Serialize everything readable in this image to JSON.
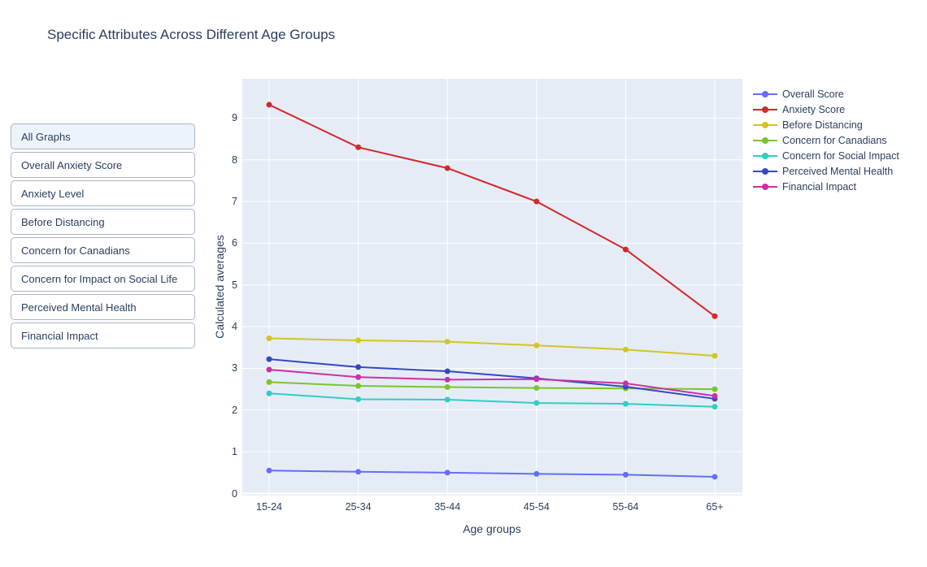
{
  "page": {
    "title": "Specific Attributes Across Different Age Groups"
  },
  "sidebar": {
    "buttons": [
      {
        "label": "All Graphs",
        "selected": true
      },
      {
        "label": "Overall Anxiety Score",
        "selected": false
      },
      {
        "label": "Anxiety Level",
        "selected": false
      },
      {
        "label": "Before Distancing",
        "selected": false
      },
      {
        "label": "Concern for Canadians",
        "selected": false
      },
      {
        "label": "Concern for Impact on Social Life",
        "selected": false
      },
      {
        "label": "Perceived Mental Health",
        "selected": false
      },
      {
        "label": "Financial Impact",
        "selected": false
      }
    ]
  },
  "chart_data": {
    "type": "line",
    "title": "Specific Attributes Across Different Age Groups",
    "categories": [
      "15-24",
      "25-34",
      "35-44",
      "45-54",
      "55-64",
      "65+"
    ],
    "series": [
      {
        "name": "Overall Score",
        "color": "#636efa",
        "values": [
          0.55,
          0.52,
          0.5,
          0.47,
          0.45,
          0.4
        ]
      },
      {
        "name": "Anxiety Score",
        "color": "#d62728",
        "values": [
          9.32,
          8.3,
          7.8,
          7.0,
          5.85,
          4.25
        ]
      },
      {
        "name": "Before Distancing",
        "color": "#d2c61f",
        "values": [
          3.72,
          3.67,
          3.64,
          3.55,
          3.45,
          3.3
        ]
      },
      {
        "name": "Concern for Canadians",
        "color": "#7ac52d",
        "values": [
          2.67,
          2.58,
          2.55,
          2.53,
          2.52,
          2.5
        ]
      },
      {
        "name": "Concern for Social Impact",
        "color": "#2dcfc4",
        "values": [
          2.4,
          2.26,
          2.25,
          2.17,
          2.15,
          2.08
        ]
      },
      {
        "name": "Perceived Mental Health",
        "color": "#3348c5",
        "values": [
          3.22,
          3.03,
          2.93,
          2.76,
          2.56,
          2.27
        ]
      },
      {
        "name": "Financial Impact",
        "color": "#cc2fa7",
        "values": [
          2.97,
          2.79,
          2.73,
          2.74,
          2.64,
          2.34
        ]
      }
    ],
    "xlabel": "Age groups",
    "ylabel": "Calculated averages",
    "ylim": [
      0,
      9.94
    ],
    "yticks": [
      0,
      1,
      2,
      3,
      4,
      5,
      6,
      7,
      8,
      9
    ],
    "grid": true,
    "legend_position": "right",
    "colors": {
      "plot_bg": "#e5ecf6",
      "grid": "#ffffff",
      "text": "#2a3f5f"
    }
  }
}
